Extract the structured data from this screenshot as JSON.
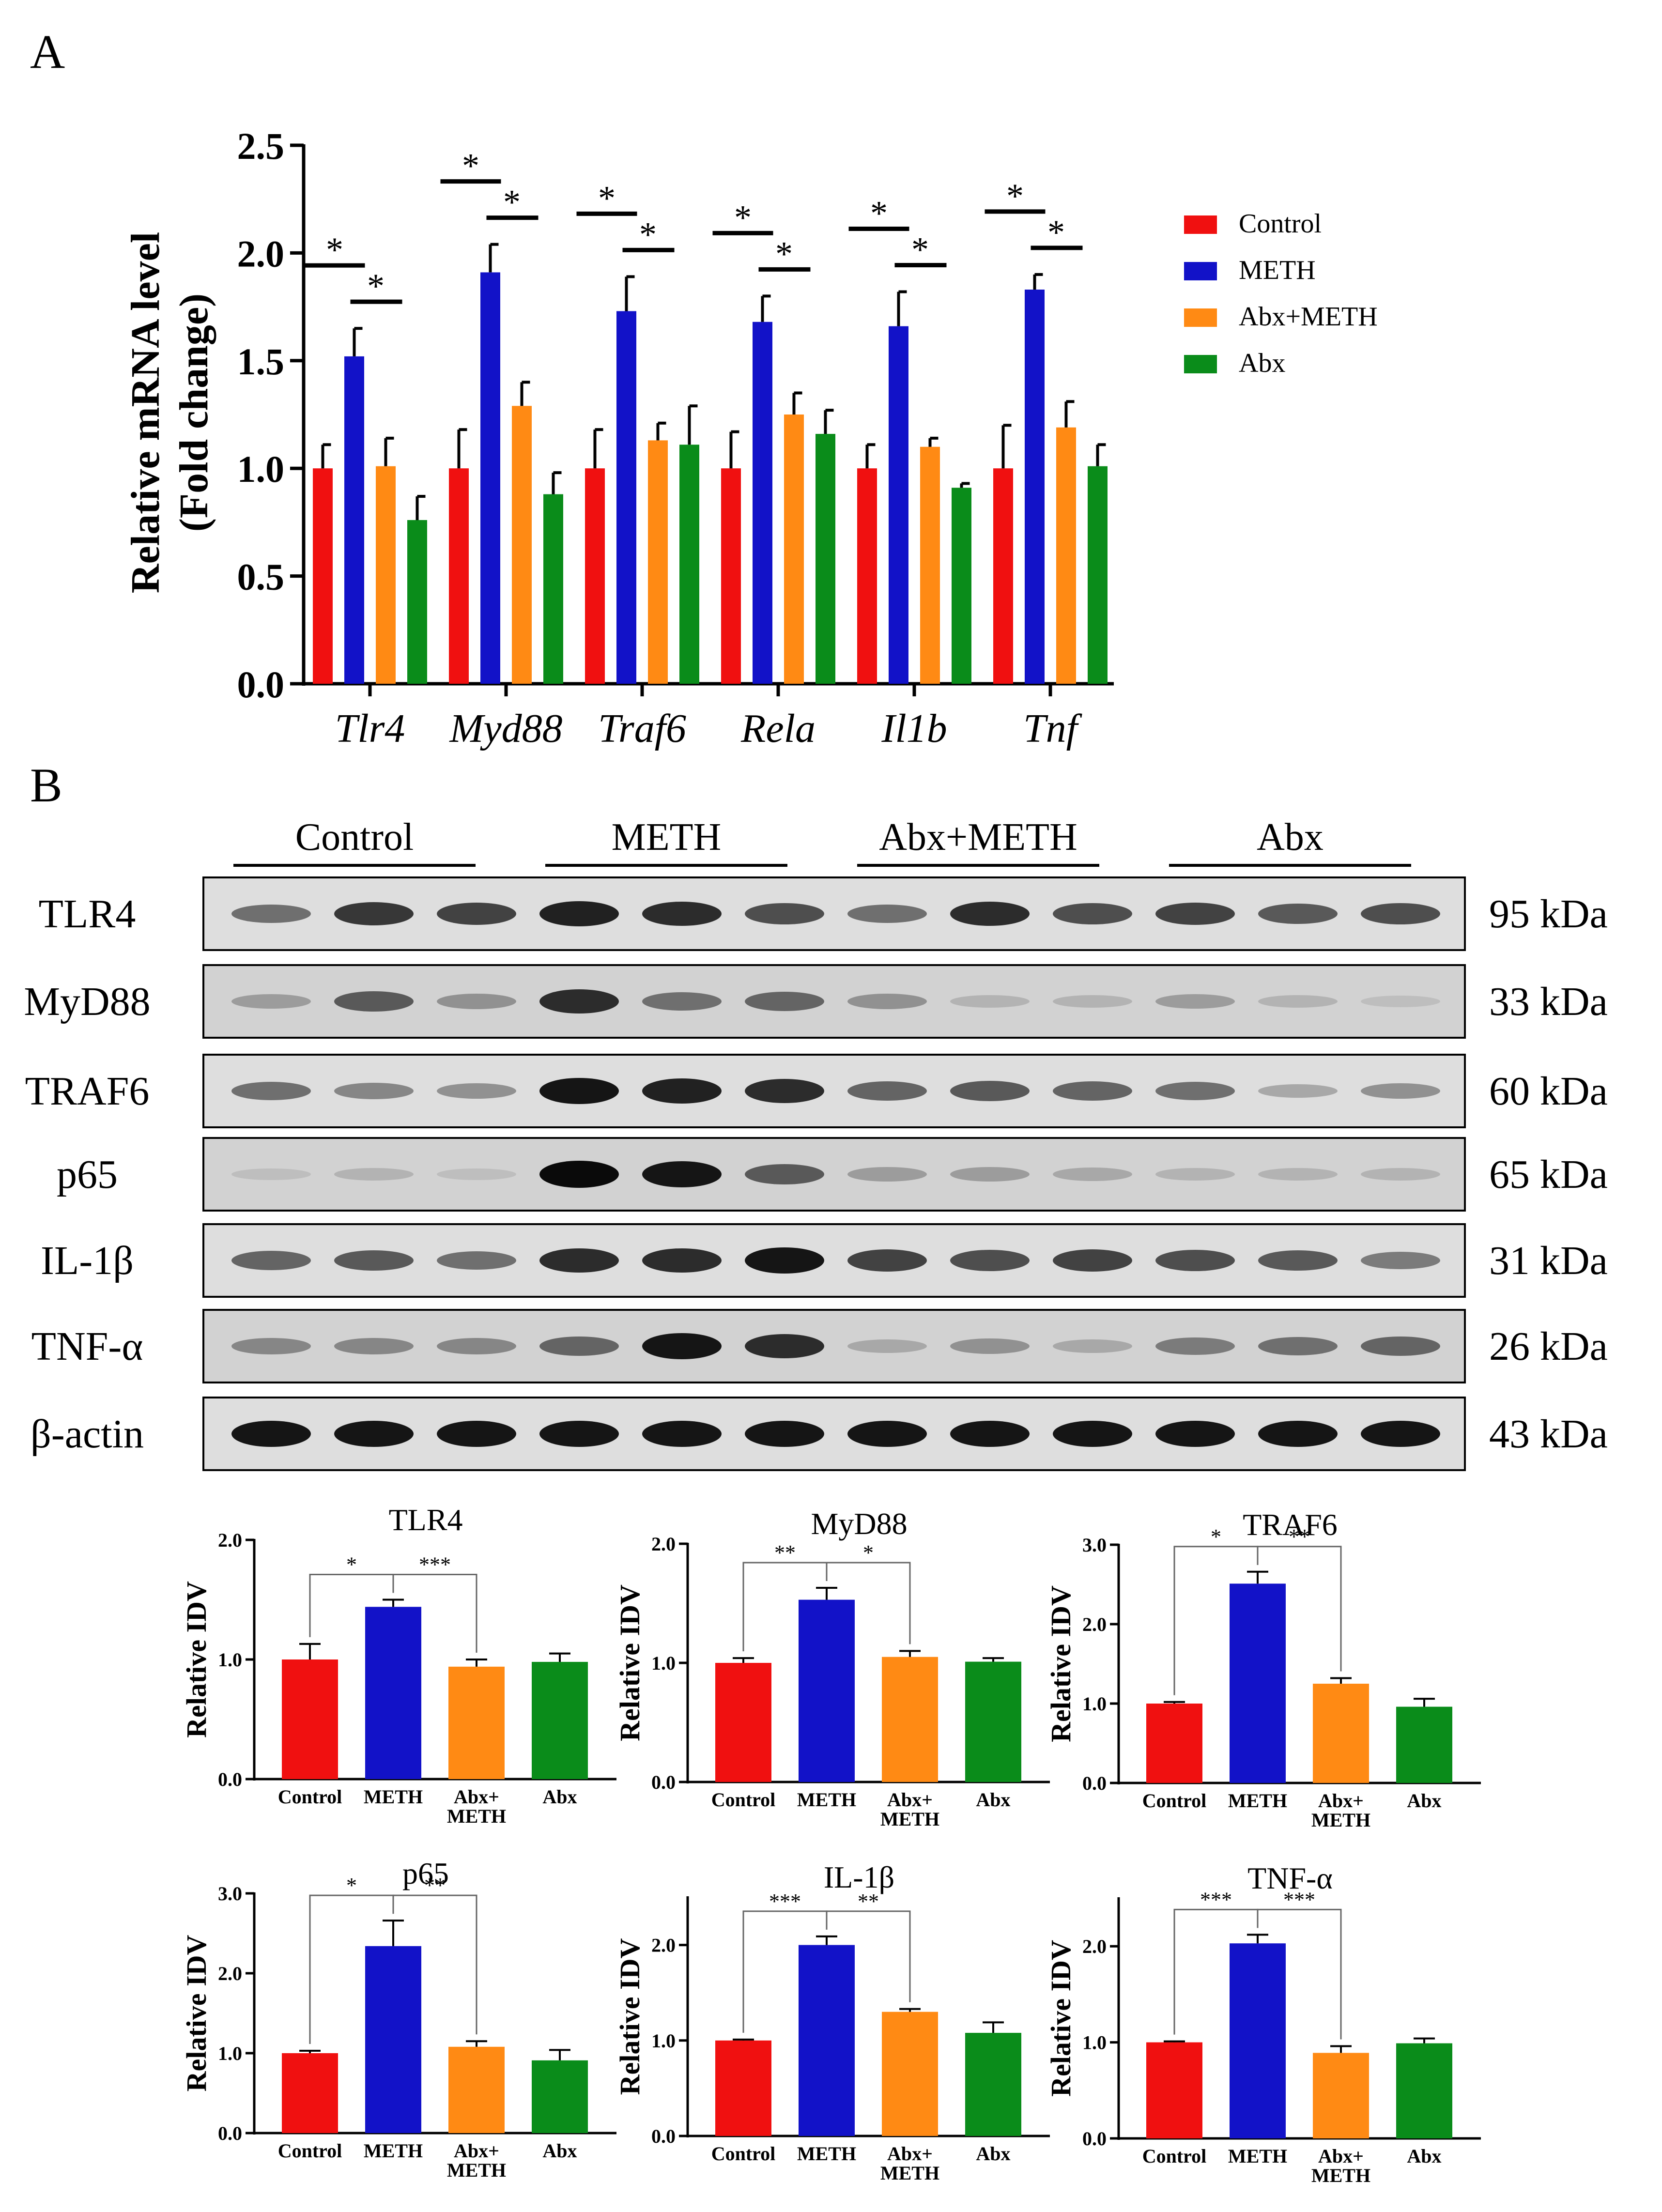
{
  "panel_labels": {
    "a": "A",
    "b": "B"
  },
  "colors": {
    "Control": "#f01010",
    "METH": "#1212c8",
    "Abx+METH": "#ff8a14",
    "Abx": "#0a8c1a"
  },
  "chart_data": [
    {
      "id": "mrna",
      "type": "bar",
      "ylabel_line1": "Relative mRNA level",
      "ylabel_line2": "(Fold change)",
      "ylim": [
        0,
        2.5
      ],
      "yticks": [
        "0.0",
        "0.5",
        "1.0",
        "1.5",
        "2.0",
        "2.5"
      ],
      "yticks_values": [
        0,
        0.5,
        1.0,
        1.5,
        2.0,
        2.5
      ],
      "categories": [
        "Tlr4",
        "Myd88",
        "Traf6",
        "Rela",
        "Il1b",
        "Tnf"
      ],
      "legend": [
        "Control",
        "METH",
        "Abx+METH",
        "Abx"
      ],
      "series": [
        {
          "name": "Control",
          "values": [
            1.0,
            1.0,
            1.0,
            1.0,
            1.0,
            1.0
          ],
          "errors": [
            0.11,
            0.18,
            0.18,
            0.17,
            0.11,
            0.2
          ]
        },
        {
          "name": "METH",
          "values": [
            1.52,
            1.91,
            1.73,
            1.68,
            1.66,
            1.83
          ],
          "errors": [
            0.13,
            0.13,
            0.16,
            0.12,
            0.16,
            0.07
          ]
        },
        {
          "name": "Abx+METH",
          "values": [
            1.01,
            1.29,
            1.13,
            1.25,
            1.1,
            1.19
          ],
          "errors": [
            0.13,
            0.11,
            0.08,
            0.1,
            0.04,
            0.12
          ]
        },
        {
          "name": "Abx",
          "values": [
            0.76,
            0.88,
            1.11,
            1.16,
            0.91,
            1.01
          ],
          "errors": [
            0.11,
            0.1,
            0.18,
            0.11,
            0.02,
            0.1
          ]
        }
      ],
      "significance": [
        {
          "category": 0,
          "pairs": [
            [
              "Control",
              "METH",
              "*"
            ],
            [
              "METH",
              "Abx+METH",
              "*"
            ]
          ]
        },
        {
          "category": 1,
          "pairs": [
            [
              "Control",
              "METH",
              "*"
            ],
            [
              "METH",
              "Abx+METH",
              "*"
            ]
          ]
        },
        {
          "category": 2,
          "pairs": [
            [
              "Control",
              "METH",
              "*"
            ],
            [
              "METH",
              "Abx+METH",
              "*"
            ]
          ]
        },
        {
          "category": 3,
          "pairs": [
            [
              "Control",
              "METH",
              "*"
            ],
            [
              "METH",
              "Abx+METH",
              "*"
            ]
          ]
        },
        {
          "category": 4,
          "pairs": [
            [
              "Control",
              "METH",
              "*"
            ],
            [
              "METH",
              "Abx+METH",
              "*"
            ]
          ]
        },
        {
          "category": 5,
          "pairs": [
            [
              "Control",
              "METH",
              "*"
            ],
            [
              "METH",
              "Abx+METH",
              "*"
            ]
          ]
        }
      ]
    },
    {
      "id": "tlr4",
      "type": "bar",
      "title": "TLR4",
      "ylabel": "Relative IDV",
      "ylim": [
        0,
        2.0
      ],
      "yticks": [
        "0.0",
        "1.0",
        "2.0"
      ],
      "yticks_values": [
        0,
        1.0,
        2.0
      ],
      "categories": [
        "Control",
        "METH",
        "Abx+ METH",
        "Abx"
      ],
      "values": [
        1.0,
        1.44,
        0.94,
        0.98
      ],
      "errors": [
        0.13,
        0.06,
        0.06,
        0.07
      ],
      "significance": [
        [
          "Control",
          "METH",
          "*"
        ],
        [
          "METH",
          "Abx+METH",
          "***"
        ]
      ]
    },
    {
      "id": "myd88",
      "type": "bar",
      "title": "MyD88",
      "ylabel": "Relative IDV",
      "ylim": [
        0,
        2.0
      ],
      "yticks": [
        "0.0",
        "1.0",
        "2.0"
      ],
      "yticks_values": [
        0,
        1.0,
        2.0
      ],
      "categories": [
        "Control",
        "METH",
        "Abx+ METH",
        "Abx"
      ],
      "values": [
        1.0,
        1.53,
        1.05,
        1.01
      ],
      "errors": [
        0.04,
        0.1,
        0.05,
        0.03
      ],
      "significance": [
        [
          "Control",
          "METH",
          "**"
        ],
        [
          "METH",
          "Abx+METH",
          "*"
        ]
      ]
    },
    {
      "id": "traf6",
      "type": "bar",
      "title": "TRAF6",
      "ylabel": "Relative IDV",
      "ylim": [
        0,
        3.0
      ],
      "yticks": [
        "0.0",
        "1.0",
        "2.0",
        "3.0"
      ],
      "yticks_values": [
        0,
        1.0,
        2.0,
        3.0
      ],
      "categories": [
        "Control",
        "METH",
        "Abx+ METH",
        "Abx"
      ],
      "values": [
        1.0,
        2.51,
        1.25,
        0.96
      ],
      "errors": [
        0.02,
        0.15,
        0.07,
        0.1
      ],
      "significance": [
        [
          "Control",
          "METH",
          "*"
        ],
        [
          "METH",
          "Abx+METH",
          "**"
        ]
      ]
    },
    {
      "id": "p65",
      "type": "bar",
      "title": "p65",
      "ylabel": "Relative IDV",
      "ylim": [
        0,
        3.0
      ],
      "yticks": [
        "0.0",
        "1.0",
        "2.0",
        "3.0"
      ],
      "yticks_values": [
        0,
        1.0,
        2.0,
        3.0
      ],
      "categories": [
        "Control",
        "METH",
        "Abx+ METH",
        "Abx"
      ],
      "values": [
        1.0,
        2.34,
        1.08,
        0.91
      ],
      "errors": [
        0.03,
        0.32,
        0.07,
        0.13
      ],
      "significance": [
        [
          "Control",
          "METH",
          "*"
        ],
        [
          "METH",
          "Abx+METH",
          "**"
        ]
      ]
    },
    {
      "id": "il1b",
      "type": "bar",
      "title": "IL-1β",
      "ylabel": "Relative IDV",
      "ylim": [
        0,
        2.5
      ],
      "yticks": [
        "0.0",
        "1.0",
        "2.0"
      ],
      "yticks_values": [
        0,
        1.0,
        2.0
      ],
      "categories": [
        "Control",
        "METH",
        "Abx+ METH",
        "Abx"
      ],
      "values": [
        1.0,
        2.0,
        1.3,
        1.08
      ],
      "errors": [
        0.01,
        0.09,
        0.03,
        0.11
      ],
      "significance": [
        [
          "Control",
          "METH",
          "***"
        ],
        [
          "METH",
          "Abx+METH",
          "**"
        ]
      ]
    },
    {
      "id": "tnfa",
      "type": "bar",
      "title": "TNF-α",
      "ylabel": "Relative IDV",
      "ylim": [
        0,
        2.5
      ],
      "yticks": [
        "0.0",
        "1.0",
        "2.0"
      ],
      "yticks_values": [
        0,
        1.0,
        2.0
      ],
      "categories": [
        "Control",
        "METH",
        "Abx+ METH",
        "Abx"
      ],
      "values": [
        1.0,
        2.03,
        0.89,
        0.99
      ],
      "errors": [
        0.01,
        0.09,
        0.07,
        0.05
      ],
      "significance": [
        [
          "Control",
          "METH",
          "***"
        ],
        [
          "METH",
          "Abx+METH",
          "***"
        ]
      ]
    }
  ],
  "blot": {
    "groups": [
      "Control",
      "METH",
      "Abx+METH",
      "Abx"
    ],
    "proteins": [
      {
        "name": "TLR4",
        "size": "95 kDa",
        "intensity": [
          0.55,
          0.8,
          0.75,
          0.9,
          0.85,
          0.7,
          0.55,
          0.85,
          0.7,
          0.75,
          0.65,
          0.7
        ]
      },
      {
        "name": "MyD88",
        "size": "33 kDa",
        "intensity": [
          0.35,
          0.65,
          0.4,
          0.85,
          0.55,
          0.6,
          0.4,
          0.25,
          0.25,
          0.35,
          0.25,
          0.2
        ]
      },
      {
        "name": "TRAF6",
        "size": "60 kDa",
        "intensity": [
          0.55,
          0.45,
          0.4,
          0.95,
          0.9,
          0.85,
          0.6,
          0.65,
          0.6,
          0.55,
          0.3,
          0.4
        ]
      },
      {
        "name": "p65",
        "size": "65 kDa",
        "intensity": [
          0.2,
          0.25,
          0.2,
          1.0,
          0.95,
          0.65,
          0.35,
          0.35,
          0.3,
          0.25,
          0.25,
          0.25
        ]
      },
      {
        "name": "IL-1β",
        "size": "31 kDa",
        "intensity": [
          0.6,
          0.65,
          0.55,
          0.85,
          0.85,
          0.95,
          0.75,
          0.7,
          0.75,
          0.7,
          0.65,
          0.5
        ]
      },
      {
        "name": "TNF-α",
        "size": "26 kDa",
        "intensity": [
          0.45,
          0.45,
          0.45,
          0.6,
          0.95,
          0.85,
          0.3,
          0.4,
          0.3,
          0.5,
          0.55,
          0.6
        ]
      },
      {
        "name": "β-actin",
        "size": "43 kDa",
        "intensity": [
          0.95,
          0.95,
          0.95,
          0.95,
          0.95,
          0.95,
          0.95,
          0.95,
          0.95,
          0.95,
          0.95,
          0.95
        ]
      }
    ]
  }
}
